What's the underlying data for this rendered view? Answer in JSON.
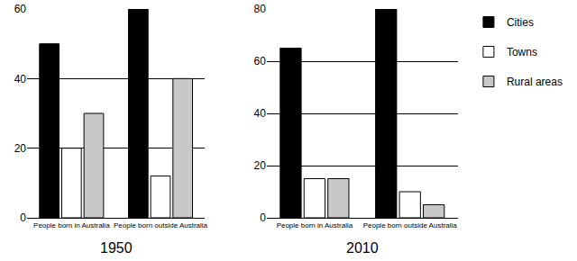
{
  "chart_data": [
    {
      "type": "bar",
      "title": "1950",
      "categories": [
        "People born in Australia",
        "People born outside Australia"
      ],
      "series": [
        {
          "name": "Cities",
          "color": "#000000",
          "values": [
            50,
            60
          ]
        },
        {
          "name": "Towns",
          "color": "#ffffff",
          "values": [
            20,
            12
          ]
        },
        {
          "name": "Rural areas",
          "color": "#c8c8c8",
          "values": [
            30,
            40
          ]
        }
      ],
      "ylim": [
        0,
        60
      ],
      "yticks": [
        0,
        20,
        40,
        60
      ],
      "grid": true,
      "legend": "right"
    },
    {
      "type": "bar",
      "title": "2010",
      "categories": [
        "People born in Australia",
        "People born outside Australia"
      ],
      "series": [
        {
          "name": "Cities",
          "color": "#000000",
          "values": [
            65,
            80
          ]
        },
        {
          "name": "Towns",
          "color": "#ffffff",
          "values": [
            15,
            10
          ]
        },
        {
          "name": "Rural areas",
          "color": "#c8c8c8",
          "values": [
            15,
            5
          ]
        }
      ],
      "ylim": [
        0,
        80
      ],
      "yticks": [
        0,
        20,
        40,
        60,
        80
      ],
      "grid": true
    }
  ]
}
